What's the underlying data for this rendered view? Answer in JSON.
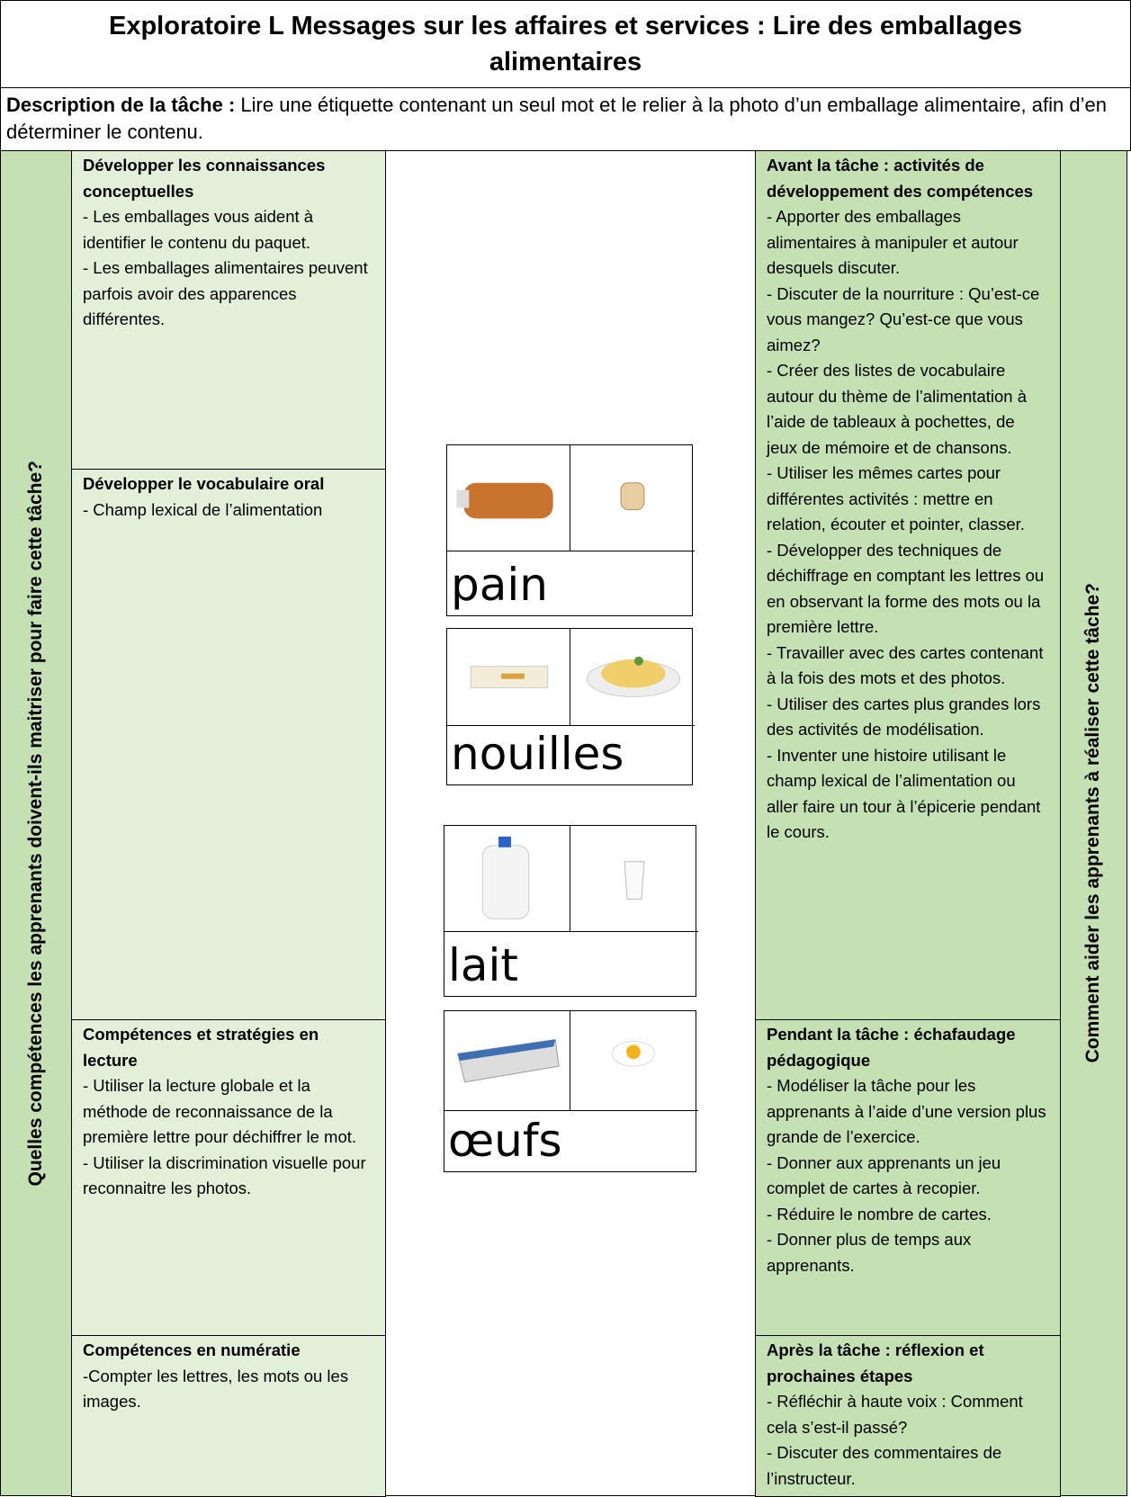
{
  "header": {
    "title": "Exploratoire L Messages sur les affaires et services : Lire des emballages alimentaires"
  },
  "description": {
    "label": "Description de la tâche :",
    "text": "Lire une étiquette contenant un seul mot et le relier à la photo d’un emballage alimentaire, afin d’en déterminer le contenu."
  },
  "left_heading": "Quelles compétences les apprenants doivent-ils maitriser pour faire cette tâche?",
  "right_heading": "Comment aider les apprenants à réaliser cette tâche?",
  "skills": [
    {
      "title": "Développer les connaissances conceptuelles",
      "items": [
        "- Les emballages vous aident à identifier le contenu du paquet.",
        "- Les emballages alimentaires peuvent parfois avoir des apparences différentes."
      ]
    },
    {
      "title": "Développer le vocabulaire oral",
      "items": [
        "- Champ lexical de l’alimentation"
      ]
    },
    {
      "title": "Compétences et stratégies en lecture",
      "items": [
        "- Utiliser la lecture globale et la méthode de reconnaissance de la première lettre pour déchiffrer le mot.",
        "- Utiliser la discrimination visuelle pour reconnaitre les photos."
      ]
    },
    {
      "title": "Compétences en numératie",
      "items": [
        "-Compter les lettres, les mots ou les images."
      ]
    }
  ],
  "cards": [
    {
      "word": "pain"
    },
    {
      "word": "nouilles"
    },
    {
      "word": "lait"
    },
    {
      "word": "œufs"
    }
  ],
  "support": [
    {
      "title": "Avant la tâche : activités de développement des compétences",
      "items": [
        "- Apporter des emballages alimentaires à manipuler et autour desquels discuter.",
        "- Discuter de la nourriture : Qu’est-ce vous mangez? Qu’est-ce que vous aimez?",
        "- Créer des listes de vocabulaire autour du thème de l’alimentation à l’aide de tableaux à pochettes, de jeux de mémoire et de chansons.",
        "- Utiliser les mêmes cartes pour différentes activités : mettre en relation, écouter et pointer, classer.",
        "- Développer des techniques de déchiffrage en comptant les lettres ou en observant la forme des mots ou la première lettre.",
        "- Travailler avec des cartes contenant à la fois des mots et des photos.",
        "- Utiliser des cartes plus grandes lors des activités de modélisation.",
        "- Inventer une histoire utilisant le champ lexical de l’alimentation ou aller faire un tour à l’épicerie pendant le cours."
      ]
    },
    {
      "title": "Pendant la tâche : échafaudage pédagogique",
      "items": [
        "- Modéliser la tâche pour les apprenants à l’aide d’une version plus grande de l’exercice.",
        "- Donner aux apprenants un jeu complet de cartes à recopier.",
        "- Réduire le nombre de cartes.",
        "- Donner plus de temps aux apprenants."
      ]
    },
    {
      "title": "Après la tâche : réflexion et prochaines étapes",
      "items": [
        "- Réfléchir à haute voix : Comment cela s’est-il passé?",
        "- Discuter des commentaires de l’instructeur."
      ]
    }
  ]
}
